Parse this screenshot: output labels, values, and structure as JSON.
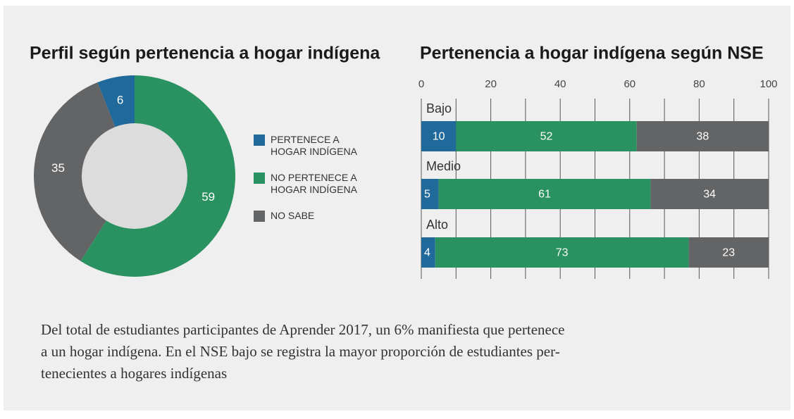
{
  "chart_data": [
    {
      "type": "pie",
      "title": "Perfil según pertenencia a hogar indígena",
      "donut": true,
      "categories": [
        "PERTENECE A HOGAR INDÍGENA",
        "NO PERTENECE A HOGAR INDÍGENA",
        "NO SABE"
      ],
      "values": [
        6,
        59,
        35
      ],
      "colors": [
        "#1f6a9a",
        "#2a9160",
        "#636466"
      ],
      "legend": "right"
    },
    {
      "type": "stacked-bar-horizontal",
      "title": "Pertenencia a hogar indígena según NSE",
      "categories": [
        "Bajo",
        "Medio",
        "Alto"
      ],
      "series": [
        {
          "name": "PERTENECE A HOGAR INDÍGENA",
          "color": "#1f6a9a",
          "values": [
            10,
            5,
            4
          ]
        },
        {
          "name": "NO PERTENECE A HOGAR INDÍGENA",
          "color": "#2a9160",
          "values": [
            52,
            61,
            73
          ]
        },
        {
          "name": "NO SABE",
          "color": "#636466",
          "values": [
            38,
            34,
            23
          ]
        }
      ],
      "xlim": [
        0,
        100
      ],
      "xticks": [
        0,
        20,
        40,
        60,
        80,
        100
      ],
      "x_minor_ticks": [
        10,
        30,
        50,
        70,
        90
      ],
      "grid": true,
      "xaxis_position": "top"
    }
  ],
  "caption": [
    "Del total de estudiantes participantes de Aprender 2017, un 6% manifiesta que pertenece",
    "a un hogar indígena. En el NSE bajo se registra la mayor proporción de estudiantes per-",
    "tenecientes a hogares indígenas"
  ]
}
